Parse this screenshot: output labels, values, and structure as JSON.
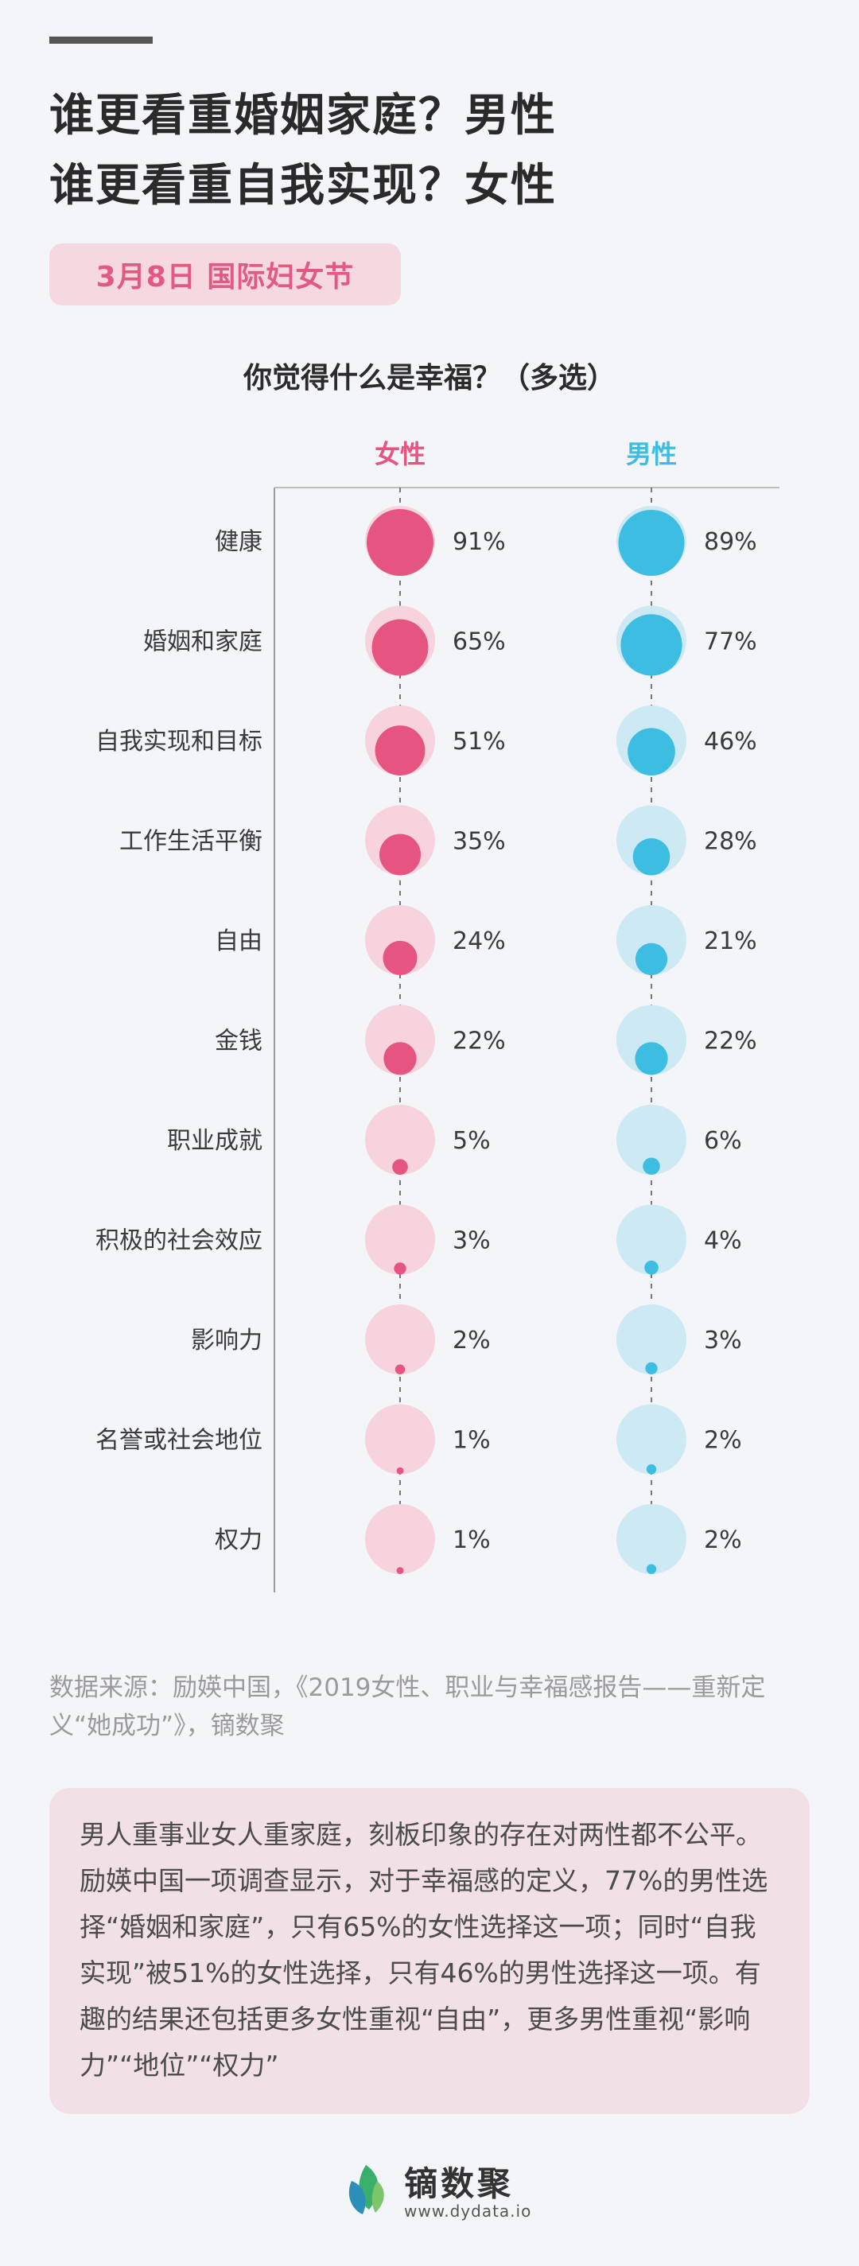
{
  "header": {
    "title_line1": "谁更看重婚姻家庭？男性",
    "title_line2": "谁更看重自我实现？女性",
    "badge": "3月8日  国际妇女节"
  },
  "chart_data": {
    "type": "bubble",
    "title": "你觉得什么是幸福？（多选）",
    "categories": [
      "健康",
      "婚姻和家庭",
      "自我实现和目标",
      "工作生活平衡",
      "自由",
      "金钱",
      "职业成就",
      "积极的社会效应",
      "影响力",
      "名誉或社会地位",
      "权力"
    ],
    "series": [
      {
        "name": "女性",
        "values": [
          91,
          65,
          51,
          35,
          24,
          22,
          5,
          3,
          2,
          1,
          1
        ],
        "labels": [
          "91%",
          "65%",
          "51%",
          "35%",
          "24%",
          "22%",
          "5%",
          "3%",
          "2%",
          "1%",
          "1%"
        ],
        "color": "#e5557f",
        "bg_color": "#f6d3dd"
      },
      {
        "name": "男性",
        "values": [
          89,
          77,
          46,
          28,
          21,
          22,
          6,
          4,
          3,
          2,
          2
        ],
        "labels": [
          "89%",
          "77%",
          "46%",
          "28%",
          "21%",
          "22%",
          "6%",
          "4%",
          "3%",
          "2%",
          "2%"
        ],
        "color": "#3dbde2",
        "bg_color": "#cdeaf4"
      }
    ]
  },
  "source": "数据来源：励媖中国，《2019女性、职业与幸福感报告——重新定义“她成功”》，镝数聚",
  "summary": "男人重事业女人重家庭，刻板印象的存在对两性都不公平。励媖中国一项调查显示，对于幸福感的定义，77%的男性选择“婚姻和家庭”，只有65%的女性选择这一项；同时“自我实现”被51%的女性选择，只有46%的男性选择这一项。有趣的结果还包括更多女性重视“自由”，更多男性重视“影响力”“地位”“权力”",
  "footer": {
    "brand": "镝数聚",
    "url": "www.dydata.io"
  }
}
